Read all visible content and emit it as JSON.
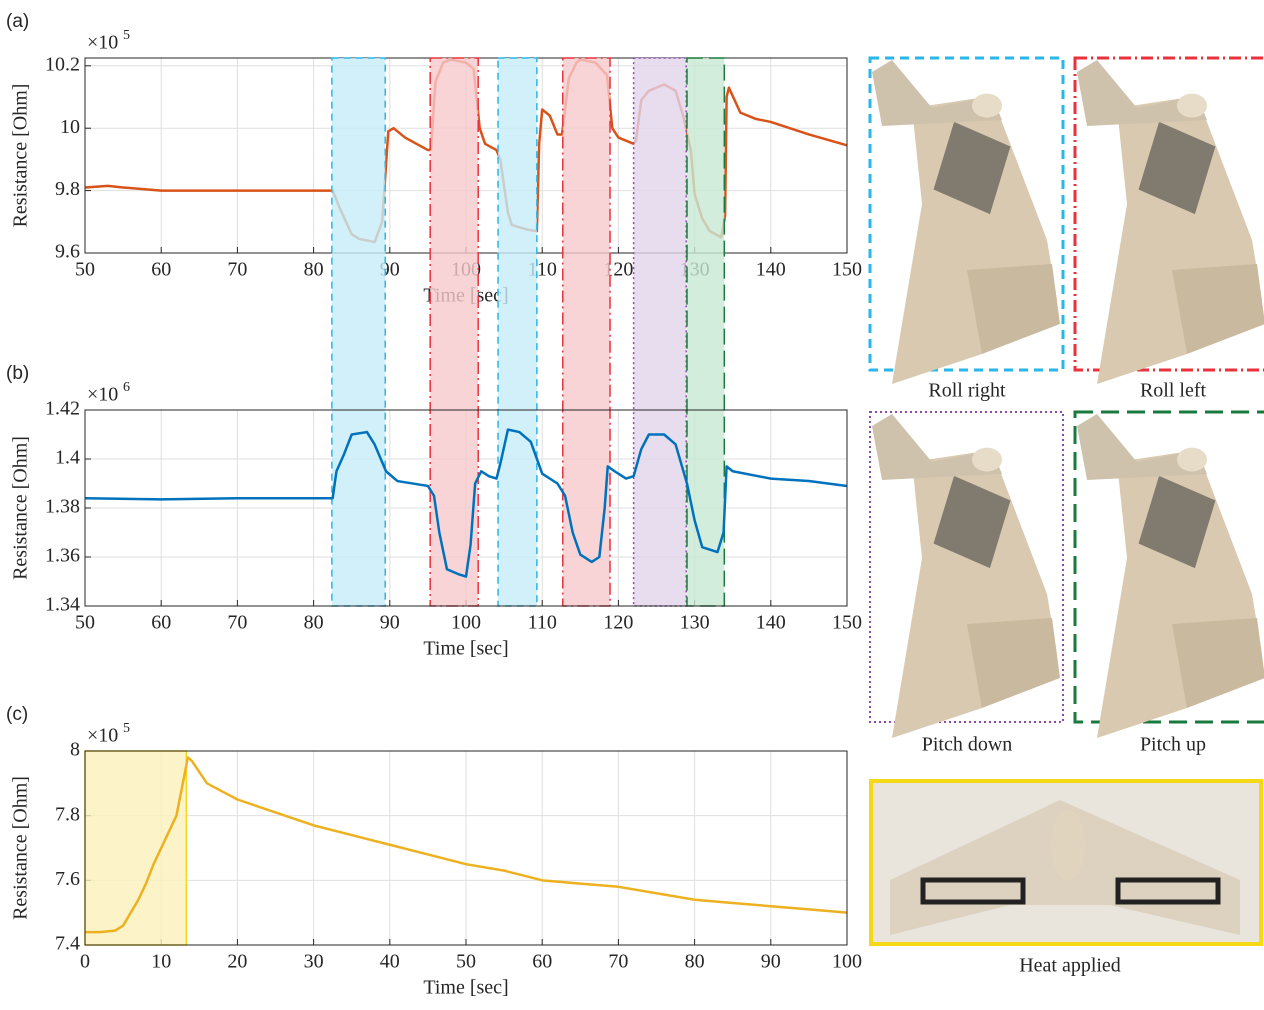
{
  "chart_data": [
    {
      "type": "line",
      "label": "(a)",
      "y_multiplier": {
        "base": "×10",
        "exponent": "5"
      },
      "xlabel": "Time [sec]",
      "ylabel": "Resistance [Ohm]",
      "color": "#d95319",
      "grid": true,
      "xlim": [
        50,
        150
      ],
      "xticks": [
        50,
        60,
        70,
        80,
        90,
        100,
        110,
        120,
        130,
        140,
        150
      ],
      "ylim": [
        9.6,
        10.225
      ],
      "yticks": [
        9.6,
        9.8,
        10,
        10.2
      ],
      "x": [
        50,
        53,
        55,
        60,
        70,
        80,
        82.5,
        83.5,
        85,
        86,
        88,
        89,
        89.8,
        90.5,
        92,
        95,
        95.4,
        96,
        97,
        98,
        100,
        101,
        101.8,
        102.5,
        104,
        104.5,
        105.5,
        106,
        108,
        109.3,
        109.6,
        110,
        111,
        112,
        112.6,
        113.5,
        114.5,
        115,
        117,
        118.5,
        119.2,
        120,
        122,
        122.3,
        123,
        124,
        126,
        127.5,
        128.5,
        129.5,
        130,
        131,
        132,
        133.5,
        134,
        134.2,
        134.5,
        136,
        138,
        140,
        145,
        150
      ],
      "values": [
        9.81,
        9.815,
        9.81,
        9.8,
        9.8,
        9.8,
        9.8,
        9.74,
        9.66,
        9.645,
        9.635,
        9.7,
        9.99,
        10.0,
        9.97,
        9.93,
        9.93,
        10.15,
        10.21,
        10.22,
        10.21,
        10.19,
        10.0,
        9.95,
        9.93,
        9.9,
        9.73,
        9.69,
        9.675,
        9.67,
        9.95,
        10.06,
        10.04,
        9.98,
        9.98,
        10.16,
        10.21,
        10.22,
        10.21,
        10.17,
        10.0,
        9.97,
        9.95,
        9.96,
        10.09,
        10.12,
        10.14,
        10.12,
        10.04,
        9.93,
        9.79,
        9.71,
        9.67,
        9.65,
        9.72,
        10.1,
        10.13,
        10.05,
        10.03,
        10.02,
        9.98,
        9.945
      ]
    },
    {
      "type": "line",
      "label": "(b)",
      "y_multiplier": {
        "base": "×10",
        "exponent": "6"
      },
      "xlabel": "Time [sec]",
      "ylabel": "Resistance [Ohm]",
      "color": "#0072bd",
      "grid": true,
      "xlim": [
        50,
        150
      ],
      "xticks": [
        50,
        60,
        70,
        80,
        90,
        100,
        110,
        120,
        130,
        140,
        150
      ],
      "ylim": [
        1.34,
        1.42
      ],
      "yticks": [
        1.34,
        1.36,
        1.38,
        1.4,
        1.42
      ],
      "x": [
        50,
        60,
        70,
        80,
        82.5,
        83,
        84,
        85,
        87,
        88,
        89.5,
        91,
        95,
        95.8,
        96.5,
        97.5,
        99,
        100,
        100.6,
        101.2,
        102,
        103,
        104,
        104.5,
        105.5,
        107,
        108.5,
        110,
        112,
        113,
        114,
        115,
        116.5,
        117.5,
        118.2,
        118.6,
        119.5,
        121,
        122,
        123,
        124,
        126,
        127.5,
        129,
        130,
        131,
        133,
        133.8,
        134.2,
        135,
        140,
        145,
        150
      ],
      "values": [
        1.384,
        1.3835,
        1.384,
        1.384,
        1.384,
        1.395,
        1.402,
        1.41,
        1.411,
        1.406,
        1.395,
        1.391,
        1.389,
        1.385,
        1.37,
        1.355,
        1.353,
        1.352,
        1.365,
        1.39,
        1.395,
        1.393,
        1.392,
        1.398,
        1.412,
        1.411,
        1.407,
        1.394,
        1.39,
        1.385,
        1.37,
        1.361,
        1.358,
        1.36,
        1.38,
        1.397,
        1.395,
        1.392,
        1.393,
        1.404,
        1.41,
        1.41,
        1.406,
        1.39,
        1.375,
        1.364,
        1.362,
        1.37,
        1.397,
        1.395,
        1.392,
        1.391,
        1.389
      ],
      "regions": [
        {
          "xlim": [
            82.4,
            89.4
          ],
          "color": "#29b6e8",
          "fill": "#c5ecf8",
          "style": "dashed"
        },
        {
          "xlim": [
            95.3,
            101.6
          ],
          "color": "#e8323c",
          "fill": "#f6c9cc",
          "style": "dashdot"
        },
        {
          "xlim": [
            104.2,
            109.3
          ],
          "color": "#29b6e8",
          "fill": "#c5ecf8",
          "style": "dashed"
        },
        {
          "xlim": [
            112.7,
            118.9
          ],
          "color": "#e8323c",
          "fill": "#f6c9cc",
          "style": "dashdot"
        },
        {
          "xlim": [
            122.0,
            128.9
          ],
          "color": "#8a4bab",
          "fill": "#e2d4ea",
          "style": "dotted"
        },
        {
          "xlim": [
            129.0,
            133.9
          ],
          "color": "#1a7a3d",
          "fill": "#c8e9d4",
          "style": "longdash"
        }
      ]
    },
    {
      "type": "line",
      "label": "(c)",
      "y_multiplier": {
        "base": "×10",
        "exponent": "5"
      },
      "xlabel": "Time [sec]",
      "ylabel": "Resistance [Ohm]",
      "color": "#edb120",
      "grid": true,
      "xlim": [
        0,
        100
      ],
      "xticks": [
        0,
        10,
        20,
        30,
        40,
        50,
        60,
        70,
        80,
        90,
        100
      ],
      "ylim": [
        7.4,
        8
      ],
      "yticks": [
        7.4,
        7.6,
        7.8,
        8
      ],
      "x": [
        0,
        2,
        4,
        5,
        6,
        7,
        8,
        9,
        10,
        11,
        12,
        13,
        13.5,
        14,
        16,
        20,
        25,
        30,
        35,
        40,
        45,
        50,
        55,
        60,
        65,
        70,
        75,
        80,
        85,
        90,
        95,
        100
      ],
      "values": [
        7.44,
        7.44,
        7.445,
        7.46,
        7.5,
        7.54,
        7.59,
        7.65,
        7.7,
        7.75,
        7.8,
        7.92,
        7.98,
        7.97,
        7.9,
        7.85,
        7.81,
        7.77,
        7.74,
        7.71,
        7.68,
        7.65,
        7.63,
        7.6,
        7.59,
        7.58,
        7.56,
        7.54,
        7.53,
        7.52,
        7.51,
        7.5
      ],
      "regions": [
        {
          "xlim": [
            0,
            13.3
          ],
          "color": "#f5d816",
          "fill": "#fbf0bc",
          "style": "solid"
        }
      ]
    }
  ],
  "photos": {
    "captions": [
      "Roll right",
      "Roll left",
      "Pitch down",
      "Pitch up",
      "Heat applied"
    ]
  }
}
